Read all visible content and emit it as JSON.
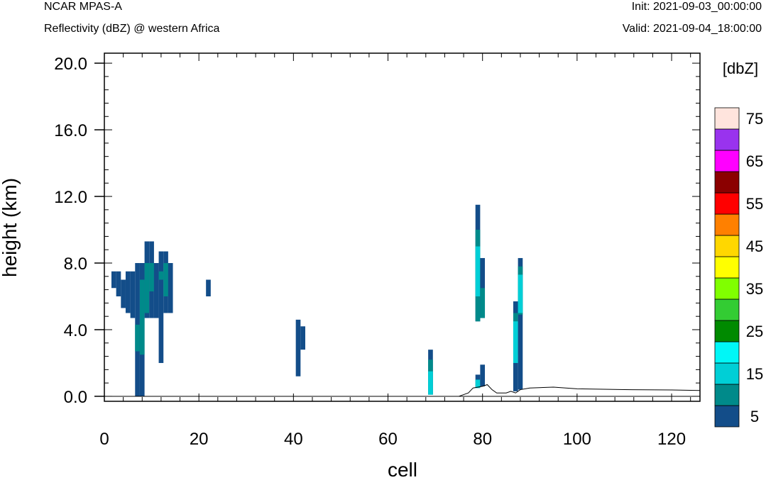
{
  "header": {
    "model": "NCAR MPAS-A",
    "field": "Reflectivity (dBZ) @ western Africa",
    "init": "Init: 2021-09-03_00:00:00",
    "valid": "Valid: 2021-09-04_18:00:00"
  },
  "chart_data": {
    "type": "heatmap",
    "xlabel": "cell",
    "ylabel": "height (km)",
    "xlim": [
      0,
      126
    ],
    "ylim": [
      -0.3,
      20.6
    ],
    "x_ticks": [
      0,
      20,
      40,
      60,
      80,
      100,
      120
    ],
    "x_tick_labels": [
      "0",
      "20",
      "40",
      "60",
      "80",
      "100",
      "120"
    ],
    "y_ticks": [
      0,
      4,
      8,
      12,
      16,
      20
    ],
    "y_tick_labels": [
      "0.0",
      "4.0",
      "8.0",
      "12.0",
      "16.0",
      "20.0"
    ],
    "colorbar": {
      "title": "[dbZ]",
      "levels": [
        5,
        10,
        15,
        20,
        25,
        30,
        35,
        40,
        45,
        50,
        55,
        60,
        65,
        70,
        75
      ],
      "labels": [
        "5",
        "15",
        "25",
        "35",
        "45",
        "55",
        "65",
        "75"
      ],
      "colors": [
        "#134d89",
        "#008a8a",
        "#00cfd6",
        "#00f7f7",
        "#008a00",
        "#33cc33",
        "#80ff00",
        "#ffff00",
        "#ffd700",
        "#ff8000",
        "#ff0000",
        "#8b0000",
        "#ff00ff",
        "#9933ee",
        "#ffe4dd"
      ]
    },
    "cells": [
      [
        2,
        6.5,
        7.5,
        5
      ],
      [
        3,
        6.0,
        7.5,
        5
      ],
      [
        4,
        5.3,
        7.0,
        5
      ],
      [
        5,
        5.0,
        7.5,
        5
      ],
      [
        6,
        4.7,
        7.5,
        5
      ],
      [
        7,
        0.0,
        8.0,
        5
      ],
      [
        7,
        2.7,
        4.3,
        10
      ],
      [
        8,
        0.0,
        8.0,
        5
      ],
      [
        8,
        2.5,
        7.0,
        10
      ],
      [
        9,
        4.7,
        9.3,
        5
      ],
      [
        9,
        5.0,
        8.0,
        10
      ],
      [
        10,
        4.7,
        9.3,
        5
      ],
      [
        10,
        6.3,
        8.0,
        10
      ],
      [
        11,
        4.7,
        8.0,
        5
      ],
      [
        12,
        2.0,
        8.7,
        5
      ],
      [
        12,
        7.0,
        7.5,
        10
      ],
      [
        13,
        5.0,
        8.7,
        5
      ],
      [
        13,
        6.0,
        8.0,
        10
      ],
      [
        14,
        5.0,
        8.0,
        5
      ],
      [
        22,
        6.0,
        7.0,
        5
      ],
      [
        41,
        1.2,
        4.6,
        5
      ],
      [
        42,
        2.8,
        4.2,
        5
      ],
      [
        69,
        0.1,
        2.8,
        5
      ],
      [
        69,
        0.1,
        2.2,
        10
      ],
      [
        69,
        0.1,
        1.5,
        15
      ],
      [
        79,
        4.5,
        11.5,
        5
      ],
      [
        79,
        4.5,
        10.0,
        10
      ],
      [
        79,
        6.0,
        9.0,
        15
      ],
      [
        79,
        0.5,
        1.3,
        5
      ],
      [
        79,
        0.5,
        1.0,
        15
      ],
      [
        80,
        4.7,
        8.3,
        5
      ],
      [
        80,
        4.7,
        6.5,
        10
      ],
      [
        80,
        0.6,
        1.9,
        5
      ],
      [
        87,
        0.3,
        5.7,
        5
      ],
      [
        87,
        2.5,
        5.0,
        10
      ],
      [
        87,
        2.0,
        4.5,
        15
      ],
      [
        88,
        0.4,
        8.3,
        5
      ],
      [
        88,
        4.9,
        7.8,
        10
      ],
      [
        88,
        5.0,
        7.3,
        15
      ]
    ],
    "terrain": [
      [
        75,
        0.0
      ],
      [
        77,
        0.2
      ],
      [
        78,
        0.5
      ],
      [
        80,
        0.6
      ],
      [
        81,
        0.7
      ],
      [
        82,
        0.4
      ],
      [
        83,
        0.2
      ],
      [
        85,
        0.2
      ],
      [
        86,
        0.3
      ],
      [
        87,
        0.2
      ],
      [
        88,
        0.4
      ],
      [
        90,
        0.5
      ],
      [
        95,
        0.55
      ],
      [
        100,
        0.45
      ],
      [
        110,
        0.4
      ],
      [
        120,
        0.38
      ],
      [
        126,
        0.35
      ]
    ]
  }
}
